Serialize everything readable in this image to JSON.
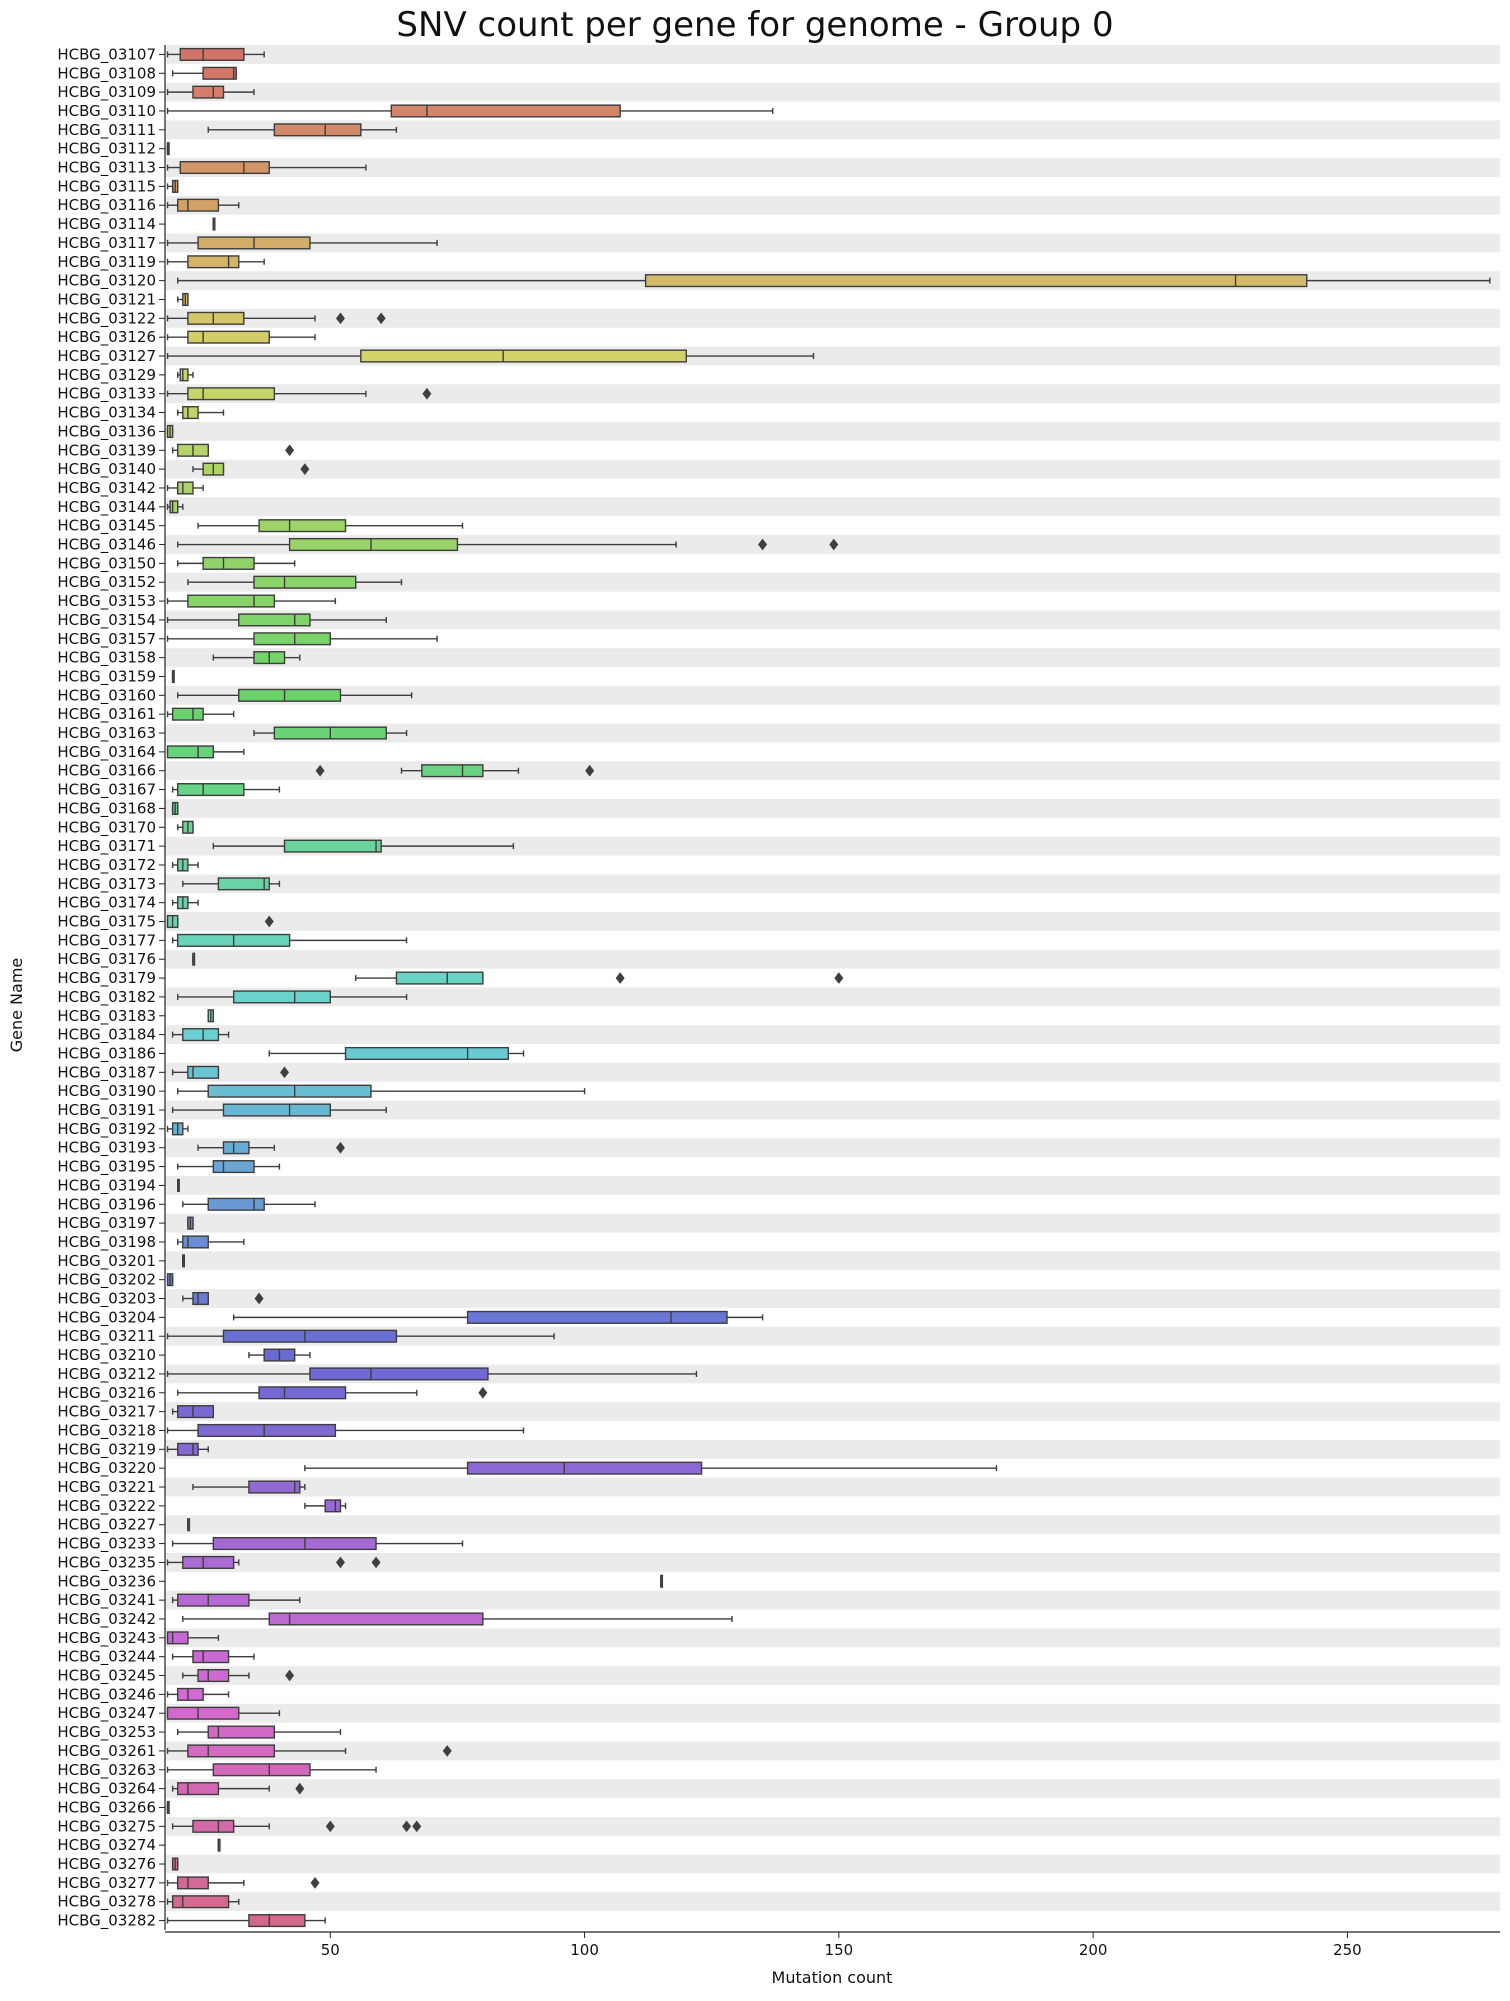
{
  "chart_data": {
    "type": "boxplot-horizontal",
    "title": "SNV count per gene for genome - Group 0",
    "xlabel": "Mutation count",
    "ylabel": "Gene Name",
    "xlim": [
      17.5,
      280
    ],
    "xticks": [
      50,
      100,
      150,
      200,
      250
    ],
    "grid": false,
    "row_shading": "alternating light grey bands",
    "colors": {
      "row_band": "#ebebeb",
      "box_stroke": "#3d3d3d",
      "palette_note": "husl rainbow across genes"
    },
    "genes": [
      {
        "name": "HCBG_03107",
        "whisker_low": 18,
        "q1": 20.5,
        "median": 25,
        "q3": 33,
        "whisker_high": 37,
        "outliers": []
      },
      {
        "name": "HCBG_03108",
        "whisker_low": 19,
        "q1": 25,
        "median": 31,
        "q3": 31.5,
        "whisker_high": 31.5,
        "outliers": []
      },
      {
        "name": "HCBG_03109",
        "whisker_low": 18,
        "q1": 23,
        "median": 27,
        "q3": 29,
        "whisker_high": 35,
        "outliers": []
      },
      {
        "name": "HCBG_03110",
        "whisker_low": 18,
        "q1": 62,
        "median": 69,
        "q3": 107,
        "whisker_high": 137,
        "outliers": []
      },
      {
        "name": "HCBG_03111",
        "whisker_low": 26,
        "q1": 39,
        "median": 49,
        "q3": 56,
        "whisker_high": 63,
        "outliers": []
      },
      {
        "name": "HCBG_03112",
        "whisker_low": 18,
        "q1": 18,
        "median": 18,
        "q3": 18,
        "whisker_high": 18,
        "outliers": []
      },
      {
        "name": "HCBG_03113",
        "whisker_low": 18,
        "q1": 20.5,
        "median": 33,
        "q3": 38,
        "whisker_high": 57,
        "outliers": []
      },
      {
        "name": "HCBG_03115",
        "whisker_low": 18,
        "q1": 19,
        "median": 19.5,
        "q3": 20,
        "whisker_high": 20,
        "outliers": []
      },
      {
        "name": "HCBG_03116",
        "whisker_low": 18,
        "q1": 20,
        "median": 22,
        "q3": 28,
        "whisker_high": 32,
        "outliers": []
      },
      {
        "name": "HCBG_03114",
        "whisker_low": 27,
        "q1": 27,
        "median": 27,
        "q3": 27,
        "whisker_high": 27,
        "outliers": []
      },
      {
        "name": "HCBG_03117",
        "whisker_low": 18,
        "q1": 24,
        "median": 35,
        "q3": 46,
        "whisker_high": 71,
        "outliers": []
      },
      {
        "name": "HCBG_03119",
        "whisker_low": 18,
        "q1": 22,
        "median": 30,
        "q3": 32,
        "whisker_high": 37,
        "outliers": []
      },
      {
        "name": "HCBG_03120",
        "whisker_low": 20,
        "q1": 112,
        "median": 228,
        "q3": 242,
        "whisker_high": 278,
        "outliers": []
      },
      {
        "name": "HCBG_03121",
        "whisker_low": 20,
        "q1": 21,
        "median": 21.5,
        "q3": 22,
        "whisker_high": 22,
        "outliers": []
      },
      {
        "name": "HCBG_03122",
        "whisker_low": 18,
        "q1": 22,
        "median": 27,
        "q3": 33,
        "whisker_high": 47,
        "outliers": [
          52,
          60
        ]
      },
      {
        "name": "HCBG_03126",
        "whisker_low": 18,
        "q1": 22,
        "median": 25,
        "q3": 38,
        "whisker_high": 47,
        "outliers": []
      },
      {
        "name": "HCBG_03127",
        "whisker_low": 18,
        "q1": 56,
        "median": 84,
        "q3": 120,
        "whisker_high": 145,
        "outliers": []
      },
      {
        "name": "HCBG_03129",
        "whisker_low": 20,
        "q1": 20.5,
        "median": 21,
        "q3": 22,
        "whisker_high": 23,
        "outliers": []
      },
      {
        "name": "HCBG_03133",
        "whisker_low": 18,
        "q1": 22,
        "median": 25,
        "q3": 39,
        "whisker_high": 57,
        "outliers": [
          69
        ]
      },
      {
        "name": "HCBG_03134",
        "whisker_low": 20,
        "q1": 21,
        "median": 22,
        "q3": 24,
        "whisker_high": 29,
        "outliers": []
      },
      {
        "name": "HCBG_03136",
        "whisker_low": 18,
        "q1": 18,
        "median": 18.5,
        "q3": 19,
        "whisker_high": 19,
        "outliers": []
      },
      {
        "name": "HCBG_03139",
        "whisker_low": 19,
        "q1": 20,
        "median": 23,
        "q3": 26,
        "whisker_high": 26,
        "outliers": [
          42
        ]
      },
      {
        "name": "HCBG_03140",
        "whisker_low": 23,
        "q1": 25,
        "median": 27,
        "q3": 29,
        "whisker_high": 29,
        "outliers": [
          45
        ]
      },
      {
        "name": "HCBG_03142",
        "whisker_low": 18,
        "q1": 20,
        "median": 21,
        "q3": 23,
        "whisker_high": 25,
        "outliers": []
      },
      {
        "name": "HCBG_03144",
        "whisker_low": 18,
        "q1": 18.5,
        "median": 19,
        "q3": 20,
        "whisker_high": 21,
        "outliers": []
      },
      {
        "name": "HCBG_03145",
        "whisker_low": 24,
        "q1": 36,
        "median": 42,
        "q3": 53,
        "whisker_high": 76,
        "outliers": []
      },
      {
        "name": "HCBG_03146",
        "whisker_low": 20,
        "q1": 42,
        "median": 58,
        "q3": 75,
        "whisker_high": 118,
        "outliers": [
          135,
          149
        ]
      },
      {
        "name": "HCBG_03150",
        "whisker_low": 20,
        "q1": 25,
        "median": 29,
        "q3": 35,
        "whisker_high": 43,
        "outliers": []
      },
      {
        "name": "HCBG_03152",
        "whisker_low": 22,
        "q1": 35,
        "median": 41,
        "q3": 55,
        "whisker_high": 64,
        "outliers": []
      },
      {
        "name": "HCBG_03153",
        "whisker_low": 18,
        "q1": 22,
        "median": 35,
        "q3": 39,
        "whisker_high": 51,
        "outliers": []
      },
      {
        "name": "HCBG_03154",
        "whisker_low": 18,
        "q1": 32,
        "median": 43,
        "q3": 46,
        "whisker_high": 61,
        "outliers": []
      },
      {
        "name": "HCBG_03157",
        "whisker_low": 18,
        "q1": 35,
        "median": 43,
        "q3": 50,
        "whisker_high": 71,
        "outliers": []
      },
      {
        "name": "HCBG_03158",
        "whisker_low": 27,
        "q1": 35,
        "median": 38,
        "q3": 41,
        "whisker_high": 44,
        "outliers": []
      },
      {
        "name": "HCBG_03159",
        "whisker_low": 19,
        "q1": 19,
        "median": 19,
        "q3": 19,
        "whisker_high": 19,
        "outliers": []
      },
      {
        "name": "HCBG_03160",
        "whisker_low": 20,
        "q1": 32,
        "median": 41,
        "q3": 52,
        "whisker_high": 66,
        "outliers": []
      },
      {
        "name": "HCBG_03161",
        "whisker_low": 18,
        "q1": 19,
        "median": 23,
        "q3": 25,
        "whisker_high": 31,
        "outliers": []
      },
      {
        "name": "HCBG_03163",
        "whisker_low": 35,
        "q1": 39,
        "median": 50,
        "q3": 61,
        "whisker_high": 65,
        "outliers": []
      },
      {
        "name": "HCBG_03164",
        "whisker_low": 18,
        "q1": 18,
        "median": 24,
        "q3": 27,
        "whisker_high": 33,
        "outliers": []
      },
      {
        "name": "HCBG_03166",
        "whisker_low": 64,
        "q1": 68,
        "median": 76,
        "q3": 80,
        "whisker_high": 87,
        "outliers": [
          48,
          101
        ]
      },
      {
        "name": "HCBG_03167",
        "whisker_low": 19,
        "q1": 20,
        "median": 25,
        "q3": 33,
        "whisker_high": 40,
        "outliers": []
      },
      {
        "name": "HCBG_03168",
        "whisker_low": 19,
        "q1": 19,
        "median": 19.5,
        "q3": 20,
        "whisker_high": 20,
        "outliers": []
      },
      {
        "name": "HCBG_03170",
        "whisker_low": 20,
        "q1": 21,
        "median": 22,
        "q3": 23,
        "whisker_high": 23,
        "outliers": []
      },
      {
        "name": "HCBG_03171",
        "whisker_low": 27,
        "q1": 41,
        "median": 59,
        "q3": 60,
        "whisker_high": 86,
        "outliers": []
      },
      {
        "name": "HCBG_03172",
        "whisker_low": 19,
        "q1": 20,
        "median": 21,
        "q3": 22,
        "whisker_high": 24,
        "outliers": []
      },
      {
        "name": "HCBG_03173",
        "whisker_low": 21,
        "q1": 28,
        "median": 37,
        "q3": 38,
        "whisker_high": 40,
        "outliers": []
      },
      {
        "name": "HCBG_03174",
        "whisker_low": 19,
        "q1": 20,
        "median": 21,
        "q3": 22,
        "whisker_high": 24,
        "outliers": []
      },
      {
        "name": "HCBG_03175",
        "whisker_low": 18,
        "q1": 18,
        "median": 19,
        "q3": 20,
        "whisker_high": 20,
        "outliers": [
          38
        ]
      },
      {
        "name": "HCBG_03177",
        "whisker_low": 19,
        "q1": 20,
        "median": 31,
        "q3": 42,
        "whisker_high": 65,
        "outliers": []
      },
      {
        "name": "HCBG_03176",
        "whisker_low": 23,
        "q1": 23,
        "median": 23,
        "q3": 23,
        "whisker_high": 23,
        "outliers": []
      },
      {
        "name": "HCBG_03179",
        "whisker_low": 55,
        "q1": 63,
        "median": 73,
        "q3": 80,
        "whisker_high": 80,
        "outliers": [
          107,
          150
        ]
      },
      {
        "name": "HCBG_03182",
        "whisker_low": 20,
        "q1": 31,
        "median": 43,
        "q3": 50,
        "whisker_high": 65,
        "outliers": []
      },
      {
        "name": "HCBG_03183",
        "whisker_low": 26,
        "q1": 26,
        "median": 26.5,
        "q3": 27,
        "whisker_high": 27,
        "outliers": []
      },
      {
        "name": "HCBG_03184",
        "whisker_low": 19,
        "q1": 21,
        "median": 25,
        "q3": 28,
        "whisker_high": 30,
        "outliers": []
      },
      {
        "name": "HCBG_03186",
        "whisker_low": 38,
        "q1": 53,
        "median": 77,
        "q3": 85,
        "whisker_high": 88,
        "outliers": []
      },
      {
        "name": "HCBG_03187",
        "whisker_low": 19,
        "q1": 22,
        "median": 23,
        "q3": 28,
        "whisker_high": 28,
        "outliers": [
          41
        ]
      },
      {
        "name": "HCBG_03190",
        "whisker_low": 20,
        "q1": 26,
        "median": 43,
        "q3": 58,
        "whisker_high": 100,
        "outliers": []
      },
      {
        "name": "HCBG_03191",
        "whisker_low": 19,
        "q1": 29,
        "median": 42,
        "q3": 50,
        "whisker_high": 61,
        "outliers": []
      },
      {
        "name": "HCBG_03192",
        "whisker_low": 18,
        "q1": 19,
        "median": 20,
        "q3": 21,
        "whisker_high": 22,
        "outliers": []
      },
      {
        "name": "HCBG_03193",
        "whisker_low": 24,
        "q1": 29,
        "median": 31,
        "q3": 34,
        "whisker_high": 39,
        "outliers": [
          52
        ]
      },
      {
        "name": "HCBG_03195",
        "whisker_low": 20,
        "q1": 27,
        "median": 29,
        "q3": 35,
        "whisker_high": 40,
        "outliers": []
      },
      {
        "name": "HCBG_03194",
        "whisker_low": 20,
        "q1": 20,
        "median": 20,
        "q3": 20,
        "whisker_high": 20,
        "outliers": []
      },
      {
        "name": "HCBG_03196",
        "whisker_low": 21,
        "q1": 26,
        "median": 35,
        "q3": 37,
        "whisker_high": 47,
        "outliers": []
      },
      {
        "name": "HCBG_03197",
        "whisker_low": 22,
        "q1": 22,
        "median": 22.5,
        "q3": 23,
        "whisker_high": 23,
        "outliers": []
      },
      {
        "name": "HCBG_03198",
        "whisker_low": 20,
        "q1": 21,
        "median": 22,
        "q3": 26,
        "whisker_high": 33,
        "outliers": []
      },
      {
        "name": "HCBG_03201",
        "whisker_low": 21,
        "q1": 21,
        "median": 21,
        "q3": 21,
        "whisker_high": 21,
        "outliers": []
      },
      {
        "name": "HCBG_03202",
        "whisker_low": 18,
        "q1": 18,
        "median": 18.5,
        "q3": 19,
        "whisker_high": 19,
        "outliers": []
      },
      {
        "name": "HCBG_03203",
        "whisker_low": 21,
        "q1": 23,
        "median": 24,
        "q3": 26,
        "whisker_high": 26,
        "outliers": [
          36
        ]
      },
      {
        "name": "HCBG_03204",
        "whisker_low": 31,
        "q1": 77,
        "median": 117,
        "q3": 128,
        "whisker_high": 135,
        "outliers": []
      },
      {
        "name": "HCBG_03211",
        "whisker_low": 18,
        "q1": 29,
        "median": 45,
        "q3": 63,
        "whisker_high": 94,
        "outliers": []
      },
      {
        "name": "HCBG_03210",
        "whisker_low": 34,
        "q1": 37,
        "median": 40,
        "q3": 43,
        "whisker_high": 46,
        "outliers": []
      },
      {
        "name": "HCBG_03212",
        "whisker_low": 18,
        "q1": 46,
        "median": 58,
        "q3": 81,
        "whisker_high": 122,
        "outliers": []
      },
      {
        "name": "HCBG_03216",
        "whisker_low": 20,
        "q1": 36,
        "median": 41,
        "q3": 53,
        "whisker_high": 67,
        "outliers": [
          80
        ]
      },
      {
        "name": "HCBG_03217",
        "whisker_low": 19,
        "q1": 20,
        "median": 23,
        "q3": 27,
        "whisker_high": 27,
        "outliers": []
      },
      {
        "name": "HCBG_03218",
        "whisker_low": 18,
        "q1": 24,
        "median": 37,
        "q3": 51,
        "whisker_high": 88,
        "outliers": []
      },
      {
        "name": "HCBG_03219",
        "whisker_low": 18,
        "q1": 20,
        "median": 23,
        "q3": 24,
        "whisker_high": 26,
        "outliers": []
      },
      {
        "name": "HCBG_03220",
        "whisker_low": 45,
        "q1": 77,
        "median": 96,
        "q3": 123,
        "whisker_high": 181,
        "outliers": []
      },
      {
        "name": "HCBG_03221",
        "whisker_low": 23,
        "q1": 34,
        "median": 43,
        "q3": 44,
        "whisker_high": 45,
        "outliers": []
      },
      {
        "name": "HCBG_03222",
        "whisker_low": 45,
        "q1": 49,
        "median": 51,
        "q3": 52,
        "whisker_high": 53,
        "outliers": []
      },
      {
        "name": "HCBG_03227",
        "whisker_low": 22,
        "q1": 22,
        "median": 22,
        "q3": 22,
        "whisker_high": 22,
        "outliers": []
      },
      {
        "name": "HCBG_03233",
        "whisker_low": 19,
        "q1": 27,
        "median": 45,
        "q3": 59,
        "whisker_high": 76,
        "outliers": []
      },
      {
        "name": "HCBG_03235",
        "whisker_low": 18,
        "q1": 21,
        "median": 25,
        "q3": 31,
        "whisker_high": 32,
        "outliers": [
          52,
          59
        ]
      },
      {
        "name": "HCBG_03236",
        "whisker_low": 115,
        "q1": 115,
        "median": 115,
        "q3": 115,
        "whisker_high": 115,
        "outliers": []
      },
      {
        "name": "HCBG_03241",
        "whisker_low": 19,
        "q1": 20,
        "median": 26,
        "q3": 34,
        "whisker_high": 44,
        "outliers": []
      },
      {
        "name": "HCBG_03242",
        "whisker_low": 21,
        "q1": 38,
        "median": 42,
        "q3": 80,
        "whisker_high": 129,
        "outliers": []
      },
      {
        "name": "HCBG_03243",
        "whisker_low": 18,
        "q1": 18,
        "median": 19,
        "q3": 22,
        "whisker_high": 28,
        "outliers": []
      },
      {
        "name": "HCBG_03244",
        "whisker_low": 19,
        "q1": 23,
        "median": 25,
        "q3": 30,
        "whisker_high": 35,
        "outliers": []
      },
      {
        "name": "HCBG_03245",
        "whisker_low": 21,
        "q1": 24,
        "median": 26,
        "q3": 30,
        "whisker_high": 34,
        "outliers": [
          42
        ]
      },
      {
        "name": "HCBG_03246",
        "whisker_low": 18,
        "q1": 20,
        "median": 22,
        "q3": 25,
        "whisker_high": 30,
        "outliers": []
      },
      {
        "name": "HCBG_03247",
        "whisker_low": 18,
        "q1": 18,
        "median": 24,
        "q3": 32,
        "whisker_high": 40,
        "outliers": []
      },
      {
        "name": "HCBG_03253",
        "whisker_low": 20,
        "q1": 26,
        "median": 28,
        "q3": 39,
        "whisker_high": 52,
        "outliers": []
      },
      {
        "name": "HCBG_03261",
        "whisker_low": 18,
        "q1": 22,
        "median": 26,
        "q3": 39,
        "whisker_high": 53,
        "outliers": [
          73
        ]
      },
      {
        "name": "HCBG_03263",
        "whisker_low": 18,
        "q1": 27,
        "median": 38,
        "q3": 46,
        "whisker_high": 59,
        "outliers": []
      },
      {
        "name": "HCBG_03264",
        "whisker_low": 19,
        "q1": 20,
        "median": 22,
        "q3": 28,
        "whisker_high": 38,
        "outliers": [
          44
        ]
      },
      {
        "name": "HCBG_03266",
        "whisker_low": 18,
        "q1": 18,
        "median": 18,
        "q3": 18,
        "whisker_high": 18,
        "outliers": []
      },
      {
        "name": "HCBG_03275",
        "whisker_low": 19,
        "q1": 23,
        "median": 28,
        "q3": 31,
        "whisker_high": 38,
        "outliers": [
          50,
          65,
          67
        ]
      },
      {
        "name": "HCBG_03274",
        "whisker_low": 28,
        "q1": 28,
        "median": 28,
        "q3": 28,
        "whisker_high": 28,
        "outliers": []
      },
      {
        "name": "HCBG_03276",
        "whisker_low": 19,
        "q1": 19,
        "median": 19.5,
        "q3": 20,
        "whisker_high": 20,
        "outliers": []
      },
      {
        "name": "HCBG_03277",
        "whisker_low": 18,
        "q1": 20,
        "median": 22,
        "q3": 26,
        "whisker_high": 33,
        "outliers": [
          47
        ]
      },
      {
        "name": "HCBG_03278",
        "whisker_low": 18,
        "q1": 19,
        "median": 21,
        "q3": 30,
        "whisker_high": 32,
        "outliers": []
      },
      {
        "name": "HCBG_03282",
        "whisker_low": 18,
        "q1": 34,
        "median": 38,
        "q3": 45,
        "whisker_high": 49,
        "outliers": []
      }
    ]
  }
}
